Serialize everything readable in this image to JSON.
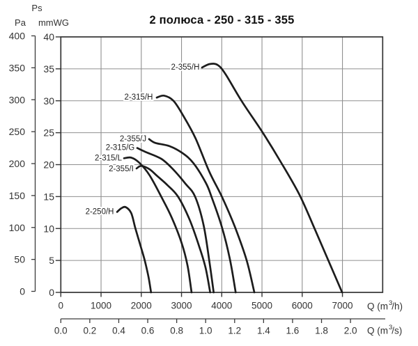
{
  "title": "2 полюса - 250 - 315 - 355",
  "pressure_header": {
    "symbol": "Ps",
    "unit_pa": "Pa",
    "unit_mmwg": "mmWG"
  },
  "flow_axis_h": {
    "prefix": "Q (m",
    "sup": "3",
    "suffix": "/h)"
  },
  "flow_axis_s": {
    "prefix": "Q (m",
    "sup": "3",
    "suffix": "/s)"
  },
  "colors": {
    "curve": "#1c1c1c",
    "grid": "#8f8f8f",
    "border": "#333333",
    "axis": "#3a3a3a",
    "tick_text": "#333333",
    "curve_label_text": "#1f1f1f",
    "background": "#ffffff"
  },
  "chart_data": {
    "type": "line",
    "title": "2 полюса - 250 - 315 - 355",
    "xlabel_h": "Q (m3/h)",
    "xlabel_s": "Q (m3/s)",
    "ylabel_left": "Ps Pa",
    "ylabel_right": "mmWG",
    "x_range_m3h": [
      0,
      8000
    ],
    "y_range_mmwg": [
      0,
      40
    ],
    "y_range_pa": [
      0,
      400
    ],
    "grid": true,
    "legend_position": "inline-labels",
    "x_gridlines_m3h": [
      1000,
      2000,
      3000,
      4000,
      5000,
      6000,
      7000
    ],
    "y_gridlines_mmwg": [
      5,
      10,
      15,
      20,
      25,
      30,
      35
    ],
    "x_ticks_m3h": [
      0,
      1000,
      2000,
      3000,
      4000,
      5000,
      6000,
      7000
    ],
    "x_ticks_m3s": [
      "0.0",
      "0.2",
      "0.4",
      "0.6",
      "0.8",
      "1.0",
      "1.2",
      "1.4",
      "1.6",
      "1.8",
      "2.0"
    ],
    "y_ticks_pa": [
      400,
      350,
      300,
      250,
      200,
      150,
      100,
      50,
      0
    ],
    "y_ticks_mmwg": [
      40,
      35,
      30,
      25,
      20,
      15,
      10,
      5,
      0
    ],
    "series": [
      {
        "name": "2-250/H",
        "label_at": [
          965,
          12.6
        ],
        "points": [
          [
            1400,
            12.6
          ],
          [
            1500,
            13.15
          ],
          [
            1612,
            13.35
          ],
          [
            1750,
            12.4
          ],
          [
            1854,
            10
          ],
          [
            2000,
            6.9
          ],
          [
            2090,
            4.9
          ],
          [
            2180,
            2.4
          ],
          [
            2242,
            0
          ]
        ]
      },
      {
        "name": "2-355/I",
        "label_at": [
          1501,
          19.3
        ],
        "points": [
          [
            1882,
            19.4
          ],
          [
            2000,
            19.8
          ],
          [
            2200,
            19.3
          ],
          [
            2400,
            18.2
          ],
          [
            2650,
            16.8
          ],
          [
            2912,
            15.0
          ],
          [
            3200,
            11.4
          ],
          [
            3450,
            7.0
          ],
          [
            3600,
            3.8
          ],
          [
            3712,
            0
          ]
        ]
      },
      {
        "name": "2-315/L",
        "label_at": [
          1181,
          21.0
        ],
        "points": [
          [
            1571,
            21.0
          ],
          [
            1750,
            21.1
          ],
          [
            1950,
            20.3
          ],
          [
            2200,
            18.4
          ],
          [
            2496,
            15.0
          ],
          [
            2750,
            11.8
          ],
          [
            3000,
            7.8
          ],
          [
            3150,
            4.2
          ],
          [
            3250,
            0
          ]
        ]
      },
      {
        "name": "2-315/G",
        "label_at": [
          1475,
          22.6
        ],
        "points": [
          [
            1900,
            22.6
          ],
          [
            2100,
            22.0
          ],
          [
            2500,
            20.9
          ],
          [
            2800,
            19.2
          ],
          [
            3100,
            17.0
          ],
          [
            3337,
            15.0
          ],
          [
            3550,
            10.5
          ],
          [
            3700,
            4.5
          ],
          [
            3799,
            0
          ]
        ]
      },
      {
        "name": "2-355/J",
        "label_at": [
          1796,
          24.0
        ],
        "points": [
          [
            2194,
            24.0
          ],
          [
            2350,
            23.4
          ],
          [
            2700,
            22.9
          ],
          [
            3027,
            21.8
          ],
          [
            3300,
            20.2
          ],
          [
            3600,
            17.2
          ],
          [
            3744,
            15.0
          ],
          [
            4000,
            10.3
          ],
          [
            4200,
            5.3
          ],
          [
            4347,
            0
          ]
        ]
      },
      {
        "name": "2-315/H",
        "label_at": [
          1934,
          30.5
        ],
        "points": [
          [
            2384,
            30.5
          ],
          [
            2570,
            30.8
          ],
          [
            2800,
            30.0
          ],
          [
            3050,
            27.6
          ],
          [
            3350,
            24.1
          ],
          [
            3690,
            18.9
          ],
          [
            4010,
            14.9
          ],
          [
            4330,
            10.2
          ],
          [
            4620,
            5.0
          ],
          [
            4810,
            0
          ]
        ]
      },
      {
        "name": "2-355/H",
        "label_at": [
          3094,
          35.2
        ],
        "points": [
          [
            3510,
            35.2
          ],
          [
            3700,
            35.75
          ],
          [
            3900,
            35.6
          ],
          [
            4100,
            34.1
          ],
          [
            4500,
            29.9
          ],
          [
            5020,
            25.0
          ],
          [
            5450,
            20.6
          ],
          [
            5930,
            15.3
          ],
          [
            6320,
            9.8
          ],
          [
            6670,
            4.7
          ],
          [
            6992,
            0
          ]
        ]
      }
    ]
  }
}
